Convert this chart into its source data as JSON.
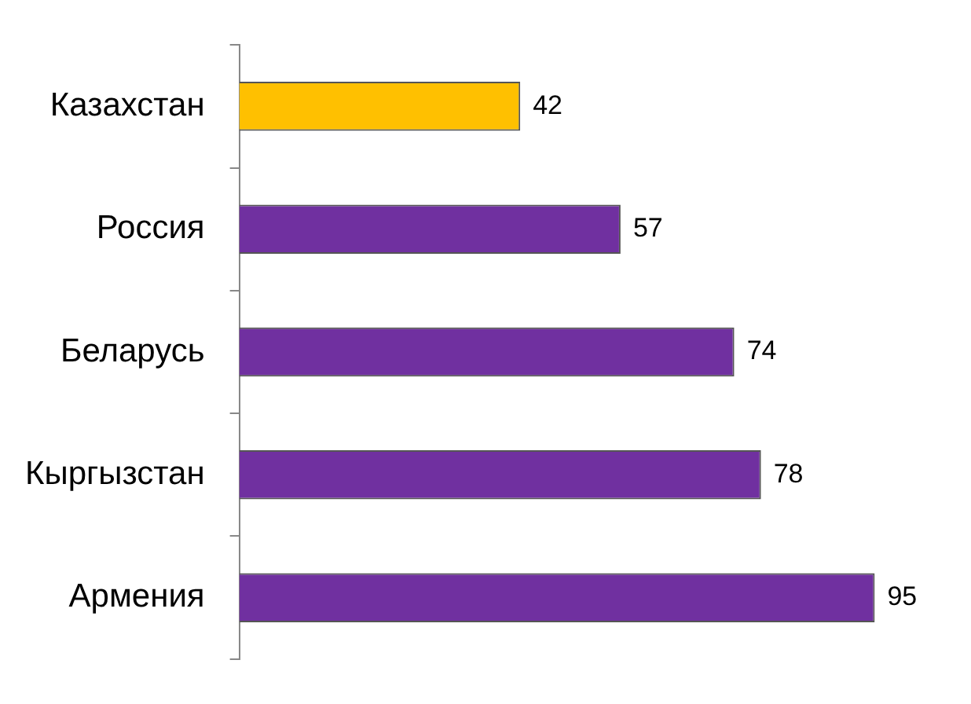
{
  "chart_data": {
    "type": "bar",
    "orientation": "horizontal",
    "categories": [
      "Казахстан",
      "Россия",
      "Беларусь",
      "Кыргызстан",
      "Армения"
    ],
    "values": [
      42,
      57,
      74,
      78,
      95
    ],
    "colors": [
      "#ffc000",
      "#7030a0",
      "#7030a0",
      "#7030a0",
      "#7030a0"
    ],
    "data_labels": true,
    "legend": false
  }
}
